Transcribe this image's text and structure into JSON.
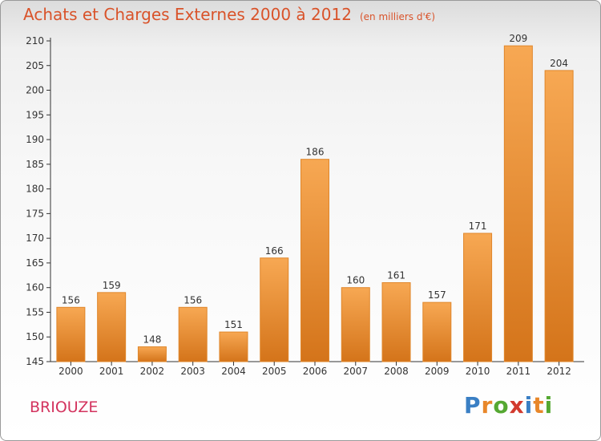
{
  "chart_data": {
    "type": "bar",
    "title": "Achats et Charges Externes 2000 à 2012",
    "subtitle": "(en milliers d'€)",
    "categories": [
      "2000",
      "2001",
      "2002",
      "2003",
      "2004",
      "2005",
      "2006",
      "2007",
      "2008",
      "2009",
      "2010",
      "2011",
      "2012"
    ],
    "values": [
      156,
      159,
      148,
      156,
      151,
      166,
      186,
      160,
      161,
      157,
      171,
      209,
      204
    ],
    "ylim": [
      145,
      210
    ],
    "yticks": [
      145,
      150,
      155,
      160,
      165,
      170,
      175,
      180,
      185,
      190,
      195,
      200,
      205,
      210
    ],
    "grid": false,
    "bar_colors": {
      "light": "#f7a853",
      "dark": "#d4741a",
      "edge": "#e0862a"
    }
  },
  "commune": "BRIOUZE",
  "logo": {
    "text": "Proxiti",
    "letter_colors": [
      "#3a7fc4",
      "#e8872a",
      "#55a832",
      "#d23a2e",
      "#3a7fc4",
      "#e8872a",
      "#55a832"
    ]
  },
  "colors": {
    "title": "#d9532a",
    "commune": "#d3335e"
  }
}
